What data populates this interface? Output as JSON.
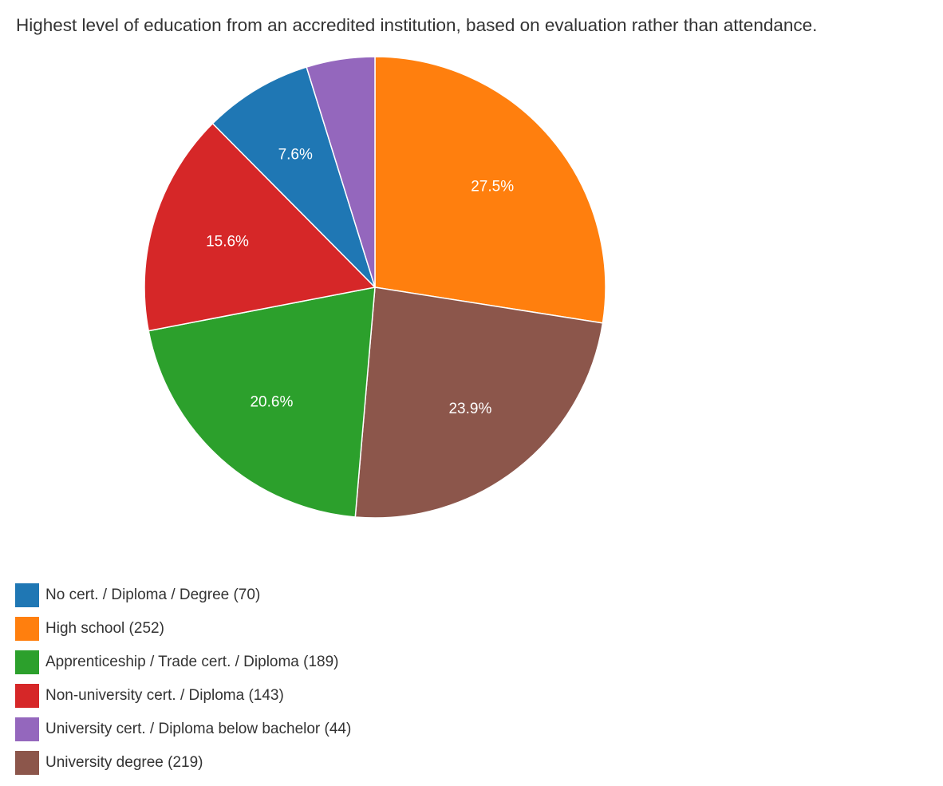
{
  "chart_data": {
    "type": "pie",
    "title": "Highest level of education from an accredited institution, based on evaluation rather than attendance.",
    "categories": [
      "No cert. / Diploma / Degree",
      "High school",
      "Apprenticeship / Trade cert. / Diploma",
      "Non-university cert. / Diploma",
      "University cert. / Diploma below bachelor",
      "University degree"
    ],
    "values": [
      70,
      252,
      189,
      143,
      44,
      219
    ],
    "slice_labels": [
      "7.6%",
      "27.5%",
      "20.6%",
      "15.6%",
      "",
      "23.9%"
    ],
    "colors": [
      "#1f77b4",
      "#ff7f0e",
      "#2ca02c",
      "#d62728",
      "#9467bd",
      "#8c564b"
    ],
    "drawing_order": [
      1,
      5,
      2,
      3,
      0,
      4
    ],
    "start_angle": "top",
    "direction": "clockwise",
    "legend": {
      "position": "bottom-left",
      "items": [
        {
          "label": "No cert. / Diploma / Degree (70)",
          "color": "#1f77b4"
        },
        {
          "label": "High school (252)",
          "color": "#ff7f0e"
        },
        {
          "label": "Apprenticeship / Trade cert. / Diploma (189)",
          "color": "#2ca02c"
        },
        {
          "label": "Non-university cert. / Diploma (143)",
          "color": "#d62728"
        },
        {
          "label": "University cert. / Diploma below bachelor (44)",
          "color": "#9467bd"
        },
        {
          "label": "University degree (219)",
          "color": "#8c564b"
        }
      ]
    }
  }
}
